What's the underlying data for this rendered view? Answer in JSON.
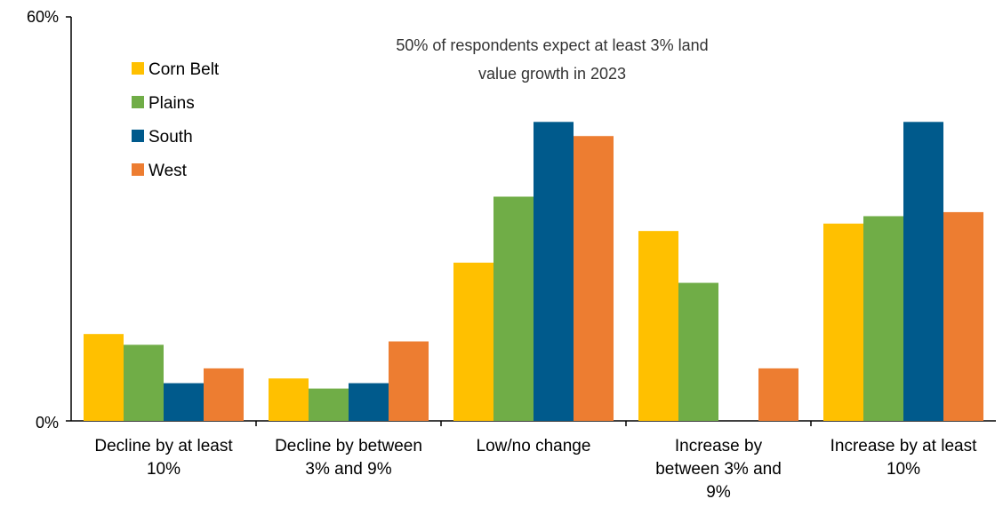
{
  "chart_data": {
    "type": "bar",
    "categories": [
      [
        "Decline by at least",
        "10%"
      ],
      [
        "Decline by between",
        "3% and 9%"
      ],
      [
        "Low/no change"
      ],
      [
        "Increase by",
        "between 3% and",
        "9%"
      ],
      [
        "Increase by at least",
        "10%"
      ]
    ],
    "series": [
      {
        "name": "Corn Belt",
        "color": "#FFC000",
        "values": [
          12.9,
          6.3,
          23.5,
          28.2,
          29.3
        ]
      },
      {
        "name": "Plains",
        "color": "#70AD47",
        "values": [
          11.3,
          4.8,
          33.3,
          20.5,
          30.4
        ]
      },
      {
        "name": "South",
        "color": "#005A8C",
        "values": [
          5.6,
          5.6,
          44.4,
          0,
          44.4
        ]
      },
      {
        "name": "West",
        "color": "#ED7D31",
        "values": [
          7.8,
          11.8,
          42.3,
          7.8,
          31.0
        ]
      }
    ],
    "yticks": [
      "0%",
      "60%"
    ],
    "ylim": [
      0,
      60
    ],
    "annotation": [
      "50% of respondents expect at least 3% land",
      "value growth in 2023"
    ],
    "legend_position": "top-left",
    "grid": false
  }
}
